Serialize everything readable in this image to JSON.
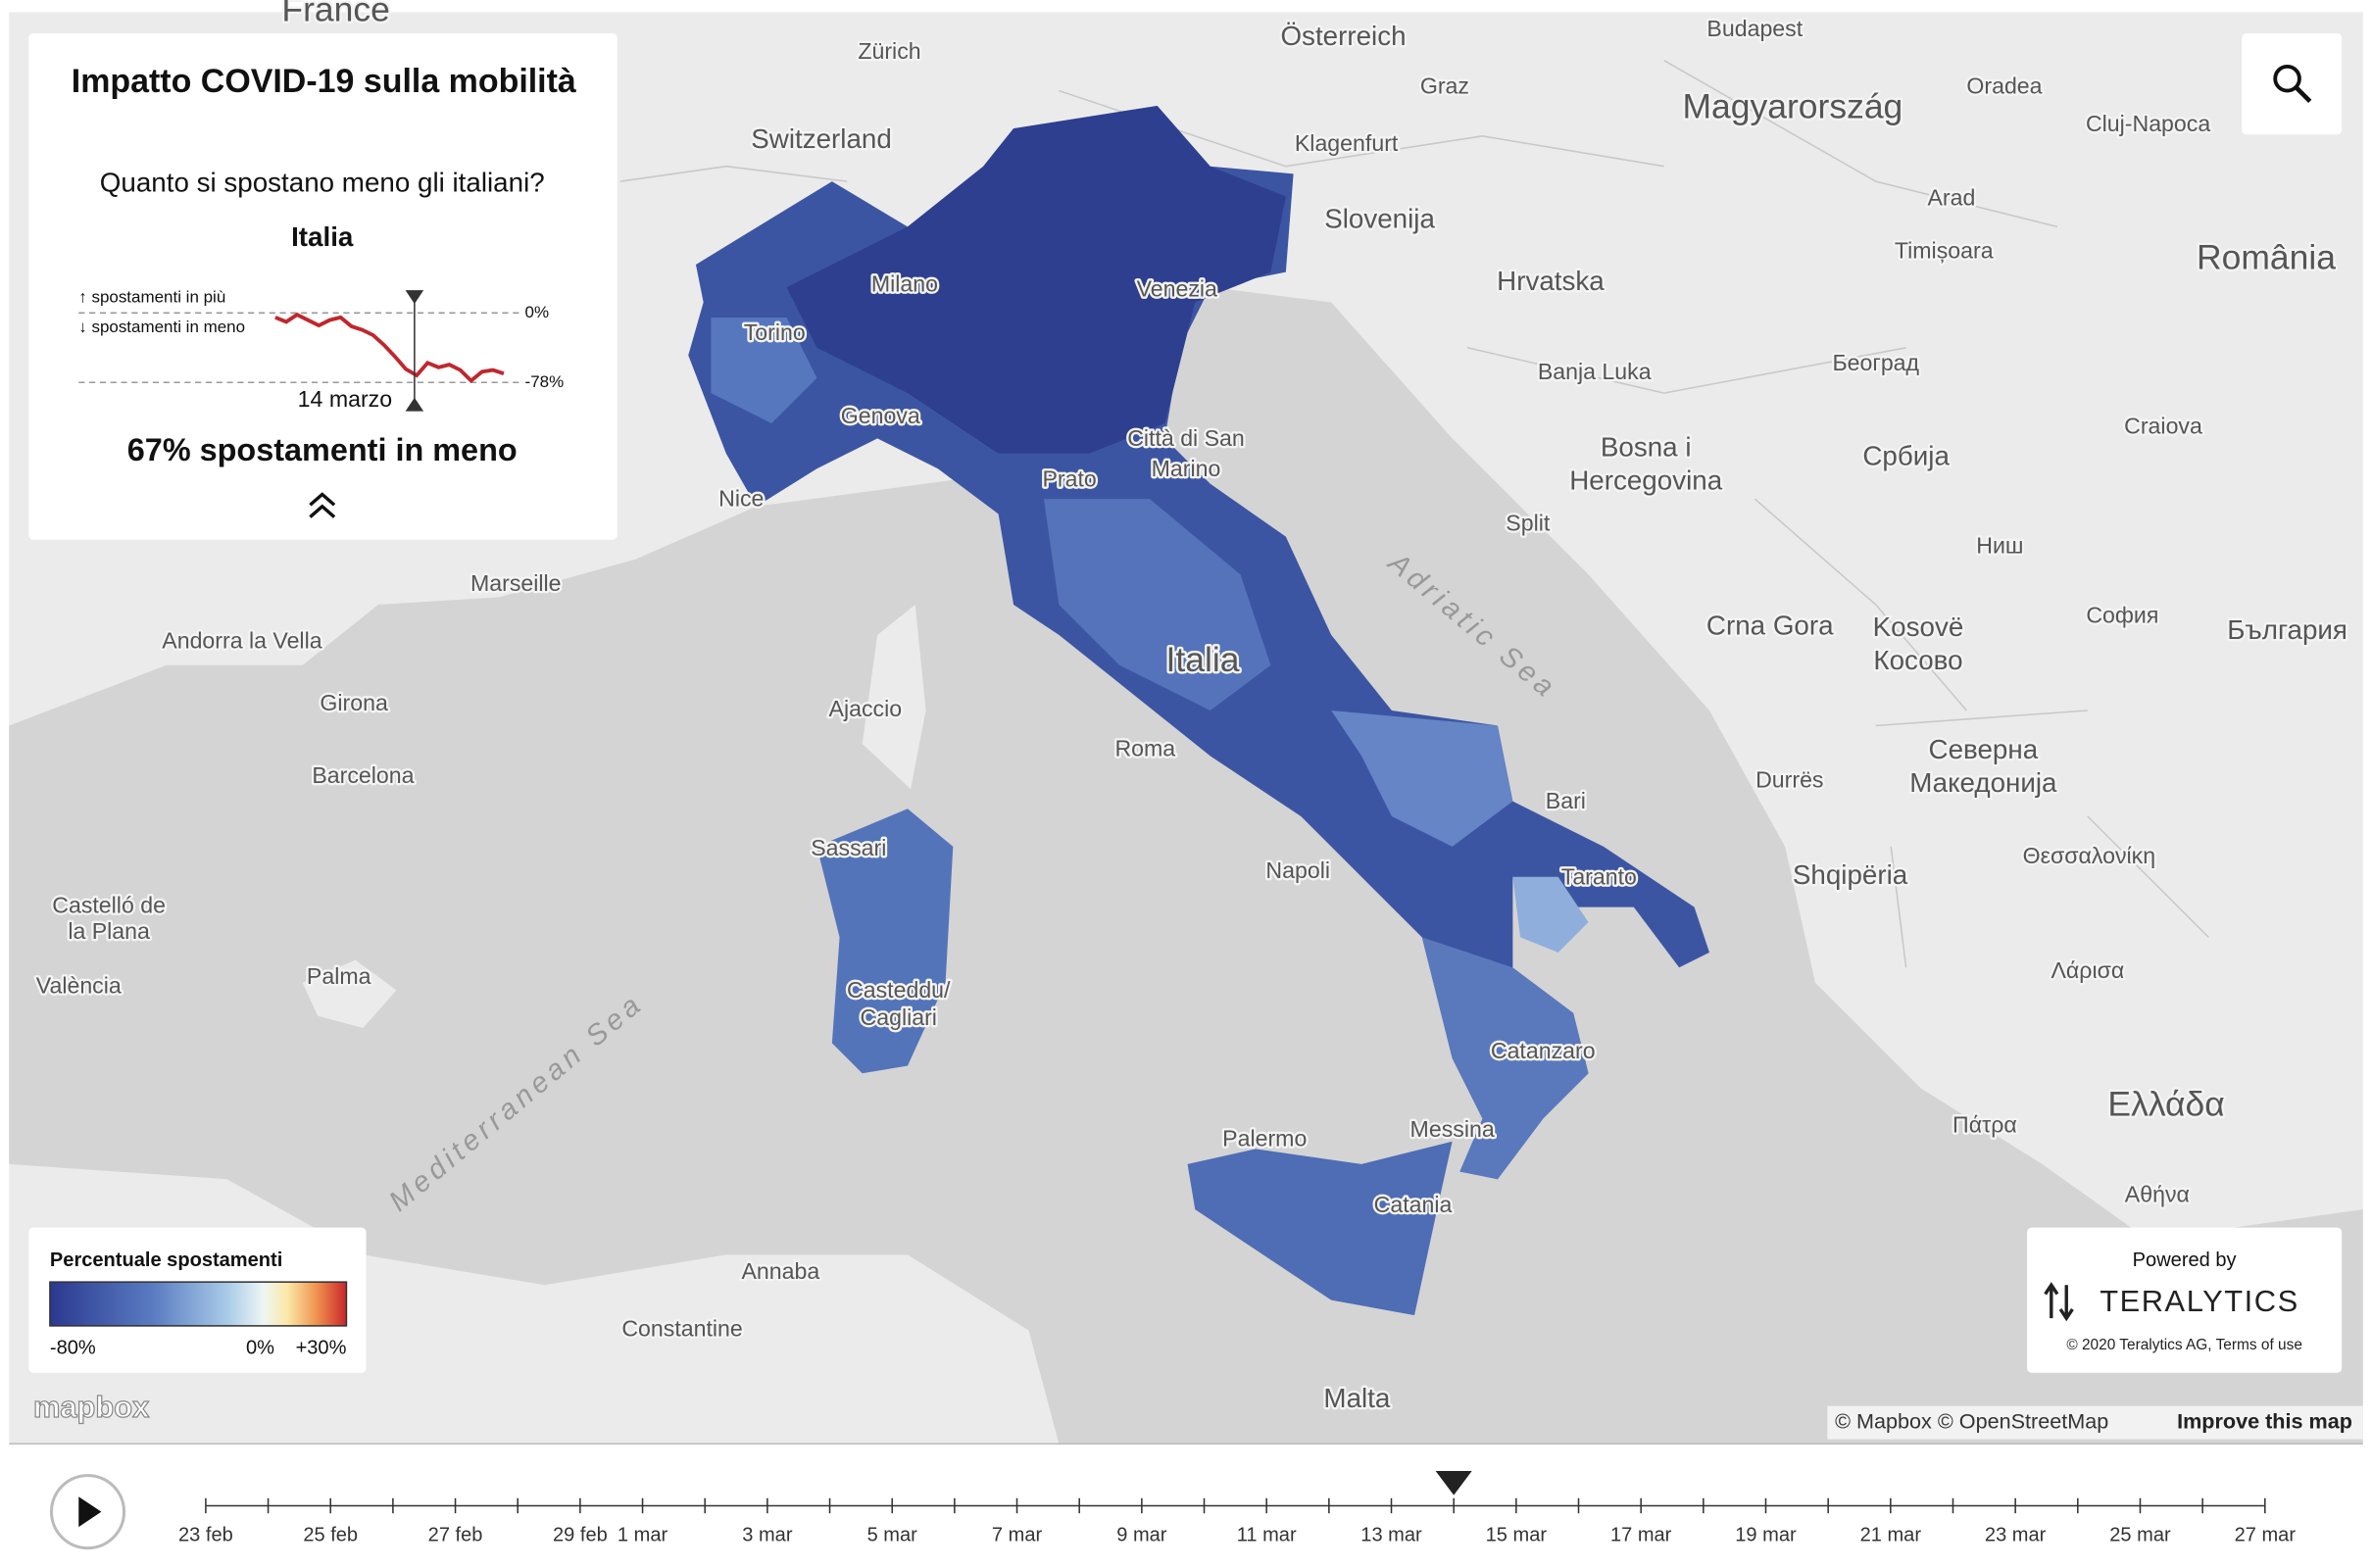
{
  "panel": {
    "title": "Impatto COVID-19 sulla mobilità",
    "subtitle": "Quanto si spostano meno gli italiani?",
    "region": "Italia",
    "more_label": "↑ spostamenti in più",
    "less_label": "↓ spostamenti in meno",
    "date": "14 marzo",
    "headline": "67% spostamenti in meno"
  },
  "sparkline": {
    "type": "line",
    "color": "#c0272d",
    "values": [
      -5,
      -10,
      -2,
      -8,
      -14,
      -8,
      -5,
      -15,
      -19,
      -25,
      -36,
      -49,
      -63,
      -70,
      -56,
      -61,
      -58,
      -64,
      -76,
      -66,
      -64,
      -68
    ],
    "ylim": [
      -78,
      0
    ],
    "yticks": [
      {
        "value": 0,
        "label": "0%"
      },
      {
        "value": -78,
        "label": "-78%"
      }
    ]
  },
  "legend": {
    "title": "Percentuale spostamenti",
    "labels": [
      "-80%",
      "0%",
      "+30%"
    ]
  },
  "map_labels": [
    "France",
    "Zürich",
    "Österreich",
    "Budapest",
    "Switzerland",
    "Graz",
    "Magyarország",
    "Oradea",
    "Cluj-Napoca",
    "Klagenfurt",
    "Slovenija",
    "Arad",
    "Timișoara",
    "România",
    "Hrvatska",
    "Milano",
    "Venezia",
    "Torino",
    "Banja Luka",
    "Београд",
    "Craiova",
    "Genova",
    "Bosna i",
    "Hercegovina",
    "Србија",
    "Città di San",
    "Marino",
    "Prato",
    "Nice",
    "Split",
    "Ниш",
    "Marseille",
    "Crna Gora",
    "Kosovë",
    "Косово",
    "София",
    "България",
    "Andorra la Vella",
    "Adriatic Sea",
    "Italia",
    "Girona",
    "Ajaccio",
    "Roma",
    "Barcelona",
    "Durrës",
    "Северна",
    "Македонија",
    "Bari",
    "Sassari",
    "Napoli",
    "Taranto",
    "Shqipëria",
    "Θεσσαλονίκη",
    "Castelló de",
    "la Plana",
    "Λάρισα",
    "Palma",
    "València",
    "Casteddu/",
    "Cagliari",
    "Mediterranean Sea",
    "Catanzaro",
    "Ελλάδα",
    "Πάτρα",
    "Palermo",
    "Messina",
    "Αθήνα",
    "Catania",
    "Annaba",
    "Constantine",
    "Malta"
  ],
  "attribution": {
    "logo": "mapbox",
    "text": "© Mapbox © OpenStreetMap",
    "link": "Improve this map"
  },
  "branding": {
    "powered": "Powered by",
    "name": "TERALYTICS",
    "copyright": "© 2020 Teralytics AG, Terms of use"
  },
  "timeline": {
    "labels": [
      "23 feb",
      "25 feb",
      "27 feb",
      "29 feb",
      "1 mar",
      "3 mar",
      "5 mar",
      "7 mar",
      "9 mar",
      "11 mar",
      "13 mar",
      "15 mar",
      "17 mar",
      "19 mar",
      "21 mar",
      "23 mar",
      "25 mar",
      "27 mar"
    ]
  }
}
